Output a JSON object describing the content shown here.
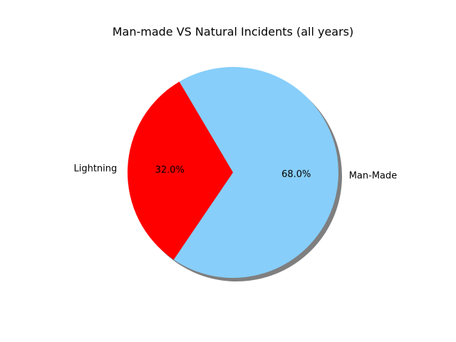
{
  "chart_data": {
    "type": "pie",
    "title": "Man-made VS Natural Incidents (all years)",
    "slices": [
      {
        "label": "Man-Made",
        "value": 68.0,
        "pct_label": "68.0%",
        "color": "#87cefa"
      },
      {
        "label": "Lightning",
        "value": 32.0,
        "pct_label": "32.0%",
        "color": "#ff0000"
      }
    ],
    "shadow": true,
    "legend": "none"
  }
}
